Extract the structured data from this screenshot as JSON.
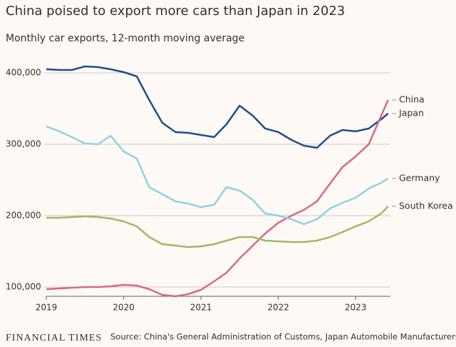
{
  "chart_data": {
    "type": "line",
    "title": "China poised to export more cars than Japan in 2023",
    "subtitle": "Monthly car exports, 12-month moving average",
    "source": "Source: China's General Administration of Customs, Japan Automobile Manufacturers Association,",
    "brand": "FINANCIAL TIMES",
    "x": [
      2019,
      2019.17,
      2019.33,
      2019.5,
      2019.67,
      2019.83,
      2020,
      2020.17,
      2020.33,
      2020.5,
      2020.67,
      2020.83,
      2021,
      2021.17,
      2021.33,
      2021.5,
      2021.67,
      2021.83,
      2022,
      2022.17,
      2022.33,
      2022.5,
      2022.67,
      2022.83,
      2023,
      2023.17,
      2023.33,
      2023.42
    ],
    "xlim": [
      2019,
      2023.45
    ],
    "xticks": [
      2019,
      2020,
      2021,
      2022,
      2023
    ],
    "ylim": [
      87000,
      420000
    ],
    "yticks": [
      {
        "value": 100000,
        "label": "100,000"
      },
      {
        "value": 200000,
        "label": "200,000"
      },
      {
        "value": 300000,
        "label": "300,000"
      },
      {
        "value": 400000,
        "label": "400,000"
      }
    ],
    "grid": true,
    "series": [
      {
        "name": "Japan",
        "color": "#1f4e8c",
        "values": [
          405000,
          404000,
          404000,
          409000,
          408000,
          405000,
          401000,
          395000,
          362000,
          330000,
          317000,
          316000,
          313000,
          310000,
          328000,
          354000,
          340000,
          322000,
          317000,
          306000,
          298000,
          295000,
          312000,
          320000,
          318000,
          322000,
          335000,
          343000
        ]
      },
      {
        "name": "China",
        "color": "#d6688a",
        "values": [
          97000,
          98000,
          99000,
          100000,
          100000,
          101000,
          103000,
          102000,
          97000,
          89000,
          87000,
          90000,
          96000,
          108000,
          120000,
          140000,
          158000,
          175000,
          190000,
          200000,
          208000,
          220000,
          245000,
          268000,
          283000,
          300000,
          340000,
          362000
        ]
      },
      {
        "name": "Germany",
        "color": "#8dd3e0",
        "values": [
          325000,
          318000,
          310000,
          301000,
          300000,
          312000,
          290000,
          280000,
          240000,
          230000,
          220000,
          217000,
          212000,
          215000,
          240000,
          235000,
          222000,
          203000,
          200000,
          195000,
          188000,
          195000,
          210000,
          218000,
          225000,
          238000,
          246000,
          252000
        ]
      },
      {
        "name": "South Korea",
        "color": "#9dbb61",
        "values": [
          197000,
          197000,
          198000,
          199000,
          198000,
          196000,
          192000,
          185000,
          170000,
          160000,
          158000,
          156000,
          157000,
          160000,
          165000,
          170000,
          170000,
          165000,
          164000,
          163000,
          163000,
          165000,
          170000,
          177000,
          185000,
          192000,
          203000,
          213000
        ]
      }
    ]
  }
}
